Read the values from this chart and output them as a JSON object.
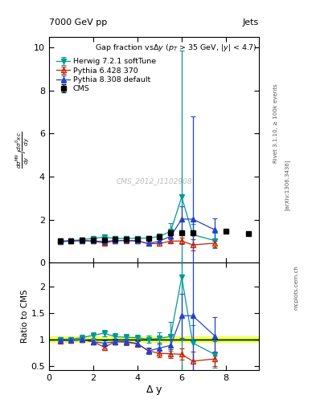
{
  "cms_x": [
    0.5,
    1.0,
    1.5,
    2.0,
    2.5,
    3.0,
    3.5,
    4.0,
    4.5,
    5.0,
    5.5,
    6.0,
    6.5,
    8.0,
    9.0
  ],
  "cms_y": [
    1.0,
    1.02,
    1.03,
    1.05,
    1.06,
    1.07,
    1.08,
    1.1,
    1.13,
    1.2,
    1.38,
    1.4,
    1.4,
    1.45,
    1.35
  ],
  "cms_yerr": [
    0.04,
    0.04,
    0.04,
    0.04,
    0.04,
    0.05,
    0.05,
    0.05,
    0.06,
    0.08,
    0.1,
    0.1,
    0.1,
    0.08,
    0.08
  ],
  "hw_x": [
    0.5,
    1.0,
    1.5,
    2.0,
    2.5,
    3.0,
    3.5,
    4.0,
    4.5,
    5.0,
    5.5,
    6.0,
    6.5,
    7.5
  ],
  "hw_y": [
    1.0,
    1.02,
    1.06,
    1.13,
    1.18,
    1.12,
    1.12,
    1.13,
    1.13,
    1.22,
    1.45,
    3.05,
    1.3,
    1.02
  ],
  "hw_yerr": [
    0.04,
    0.04,
    0.05,
    0.06,
    0.07,
    0.07,
    0.07,
    0.07,
    0.07,
    0.13,
    0.38,
    6.8,
    0.48,
    0.35
  ],
  "hw_color": "#009999",
  "p6_x": [
    0.5,
    1.0,
    1.5,
    2.0,
    2.5,
    3.0,
    3.5,
    4.0,
    4.5,
    5.0,
    5.5,
    6.0,
    6.5,
    7.5
  ],
  "p6_y": [
    0.97,
    1.0,
    1.02,
    1.0,
    0.9,
    1.02,
    1.02,
    1.0,
    0.88,
    0.88,
    1.0,
    1.0,
    0.82,
    0.9
  ],
  "p6_yerr": [
    0.04,
    0.04,
    0.04,
    0.05,
    0.06,
    0.06,
    0.06,
    0.06,
    0.06,
    0.08,
    0.12,
    0.15,
    0.25,
    0.2
  ],
  "p6_color": "#cc2200",
  "p8_x": [
    0.5,
    1.0,
    1.5,
    2.0,
    2.5,
    3.0,
    3.5,
    4.0,
    4.5,
    5.0,
    5.5,
    6.0,
    6.5,
    7.5
  ],
  "p8_y": [
    0.98,
    1.0,
    1.02,
    1.0,
    0.98,
    1.02,
    1.03,
    1.01,
    0.88,
    1.0,
    1.22,
    2.02,
    2.02,
    1.52
  ],
  "p8_yerr": [
    0.04,
    0.04,
    0.05,
    0.05,
    0.06,
    0.06,
    0.06,
    0.06,
    0.07,
    0.12,
    0.28,
    0.58,
    4.8,
    0.52
  ],
  "p8_color": "#2244cc",
  "xlim": [
    0,
    9.5
  ],
  "ylim_main": [
    0,
    10.5
  ],
  "ylim_ratio": [
    0.42,
    2.42
  ],
  "yticks_main": [
    0,
    2,
    4,
    6,
    8,
    10
  ],
  "yticks_ratio": [
    0.5,
    1.0,
    1.5,
    2.0
  ],
  "xticks": [
    0,
    2,
    4,
    6,
    8
  ]
}
